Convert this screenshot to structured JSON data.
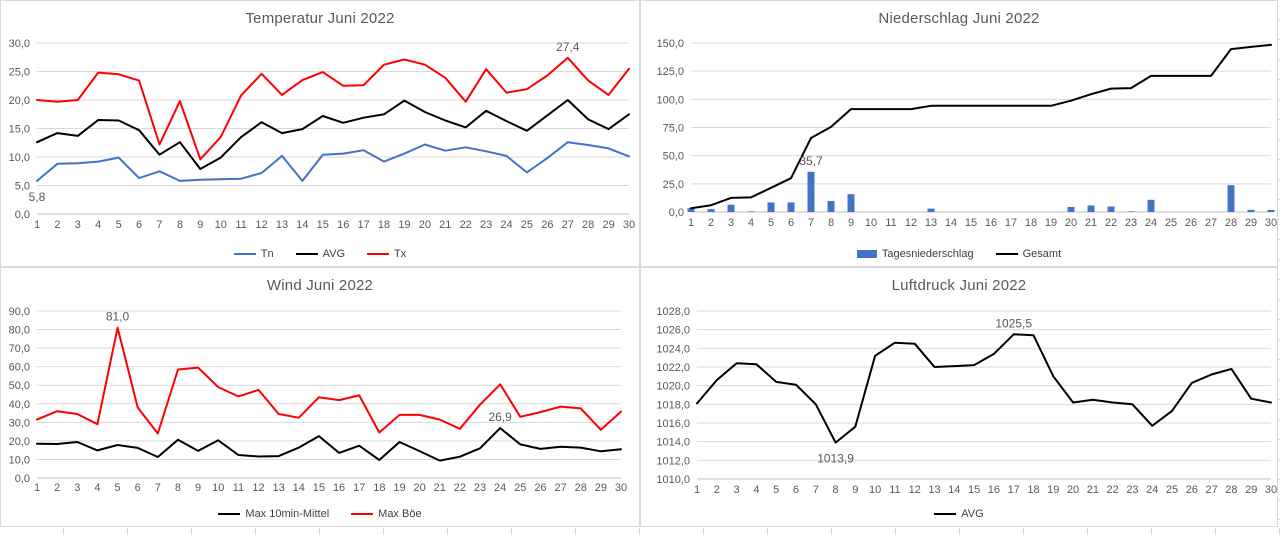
{
  "page": {
    "background_color": "#ffffff",
    "panel_border_color": "#d9d9d9",
    "grid_color": "#d9d9d9",
    "axis_line_color": "#bfbfbf",
    "tick_text_color": "#595959",
    "title_text_color": "#595959",
    "accent_blue": "#4472C4",
    "accent_red": "#FF0000",
    "accent_black": "#000000"
  },
  "chart_data": [
    {
      "id": "temperatur",
      "type": "line",
      "title": "Temperatur Juni 2022",
      "xlabel": "",
      "ylabel": "",
      "grid": true,
      "legend_position": "bottom",
      "ylim": [
        0,
        30
      ],
      "y_ticks": [
        0,
        5,
        10,
        15,
        20,
        25,
        30
      ],
      "y_tick_labels": [
        "0,0",
        "5,0",
        "10,0",
        "15,0",
        "20,0",
        "25,0",
        "30,0"
      ],
      "categories": [
        1,
        2,
        3,
        4,
        5,
        6,
        7,
        8,
        9,
        10,
        11,
        12,
        13,
        14,
        15,
        16,
        17,
        18,
        19,
        20,
        21,
        22,
        23,
        24,
        25,
        26,
        27,
        28,
        29,
        30
      ],
      "series": [
        {
          "name": "Tn",
          "type": "line",
          "color": "#4472C4",
          "values": [
            5.8,
            8.8,
            8.9,
            9.2,
            9.9,
            6.3,
            7.5,
            5.8,
            6.0,
            6.1,
            6.2,
            7.2,
            10.2,
            5.8,
            10.4,
            10.6,
            11.2,
            9.2,
            10.6,
            12.2,
            11.1,
            11.7,
            11.0,
            10.2,
            7.3,
            9.8,
            12.6,
            12.1,
            11.5,
            10.1
          ]
        },
        {
          "name": "AVG",
          "type": "line",
          "color": "#000000",
          "values": [
            12.6,
            14.2,
            13.7,
            16.5,
            16.4,
            14.7,
            10.4,
            12.6,
            7.9,
            9.9,
            13.5,
            16.1,
            14.2,
            14.9,
            17.2,
            16.0,
            16.9,
            17.5,
            19.9,
            17.9,
            16.4,
            15.2,
            18.1,
            16.3,
            14.6,
            17.3,
            20.0,
            16.6,
            14.9,
            17.5
          ]
        },
        {
          "name": "Tx",
          "type": "line",
          "color": "#FF0000",
          "values": [
            20.0,
            19.7,
            20.0,
            24.8,
            24.5,
            23.4,
            12.2,
            19.8,
            9.6,
            13.5,
            20.8,
            24.6,
            20.9,
            23.5,
            24.9,
            22.5,
            22.6,
            26.2,
            27.1,
            26.2,
            23.9,
            19.7,
            25.4,
            21.3,
            21.9,
            24.3,
            27.4,
            23.4,
            20.9,
            25.5
          ]
        }
      ],
      "annotations": [
        {
          "text": "5,8",
          "series": "Tn",
          "day": 1,
          "color": "#4472C4",
          "placement": "below"
        },
        {
          "text": "27,4",
          "series": "Tx",
          "day": 27,
          "color": "#FF0000",
          "placement": "above"
        }
      ]
    },
    {
      "id": "niederschlag",
      "type": "bar",
      "title": "Niederschlag Juni 2022",
      "xlabel": "",
      "ylabel": "",
      "grid": true,
      "legend_position": "bottom",
      "ylim": [
        0,
        150
      ],
      "y_ticks": [
        0,
        25,
        50,
        75,
        100,
        125,
        150
      ],
      "y_tick_labels": [
        "0,0",
        "25,0",
        "50,0",
        "75,0",
        "100,0",
        "125,0",
        "150,0"
      ],
      "categories": [
        1,
        2,
        3,
        4,
        5,
        6,
        7,
        8,
        9,
        10,
        11,
        12,
        13,
        14,
        15,
        16,
        17,
        18,
        19,
        20,
        21,
        22,
        23,
        24,
        25,
        26,
        27,
        28,
        29,
        30
      ],
      "series": [
        {
          "name": "Tagesniederschlag",
          "type": "bar",
          "color": "#4472C4",
          "values": [
            3.4,
            2.6,
            6.5,
            0.5,
            8.5,
            8.5,
            35.7,
            9.8,
            15.8,
            0,
            0,
            0,
            3.0,
            0,
            0,
            0,
            0,
            0,
            0,
            4.5,
            5.8,
            4.9,
            0.5,
            10.8,
            0,
            0,
            0,
            23.8,
            1.9,
            1.8
          ]
        },
        {
          "name": "Gesamt",
          "type": "line",
          "color": "#000000",
          "values": [
            3.4,
            6.0,
            12.5,
            13.0,
            21.5,
            30.0,
            65.7,
            75.5,
            91.3,
            91.3,
            91.3,
            91.3,
            94.3,
            94.3,
            94.3,
            94.3,
            94.3,
            94.3,
            94.3,
            98.8,
            104.6,
            109.5,
            110.0,
            120.8,
            120.8,
            120.8,
            120.8,
            144.6,
            146.5,
            148.3
          ]
        }
      ],
      "annotations": [
        {
          "text": "35,7",
          "series": "Tagesniederschlag",
          "day": 7,
          "color": "#2E86C1",
          "placement": "above"
        }
      ]
    },
    {
      "id": "wind",
      "type": "line",
      "title": "Wind Juni 2022",
      "xlabel": "",
      "ylabel": "",
      "grid": true,
      "legend_position": "bottom",
      "ylim": [
        0,
        90
      ],
      "y_ticks": [
        0,
        10,
        20,
        30,
        40,
        50,
        60,
        70,
        80,
        90
      ],
      "y_tick_labels": [
        "0,0",
        "10,0",
        "20,0",
        "30,0",
        "40,0",
        "50,0",
        "60,0",
        "70,0",
        "80,0",
        "90,0"
      ],
      "categories": [
        1,
        2,
        3,
        4,
        5,
        6,
        7,
        8,
        9,
        10,
        11,
        12,
        13,
        14,
        15,
        16,
        17,
        18,
        19,
        20,
        21,
        22,
        23,
        24,
        25,
        26,
        27,
        28,
        29,
        30
      ],
      "series": [
        {
          "name": "Max 10min-Mittel",
          "type": "line",
          "color": "#000000",
          "values": [
            18.5,
            18.3,
            19.4,
            14.9,
            17.8,
            16.2,
            11.3,
            20.6,
            14.6,
            20.3,
            12.4,
            11.6,
            11.8,
            16.4,
            22.6,
            13.5,
            17.4,
            9.7,
            19.4,
            14.5,
            9.4,
            11.5,
            16.0,
            26.9,
            18.1,
            15.7,
            16.8,
            16.4,
            14.4,
            15.5
          ]
        },
        {
          "name": "Max Böe",
          "type": "line",
          "color": "#FF0000",
          "values": [
            31.5,
            36.0,
            34.5,
            29.0,
            81.0,
            38.0,
            24.0,
            58.5,
            59.5,
            49.0,
            44.0,
            47.5,
            34.5,
            32.5,
            43.5,
            42.0,
            44.5,
            24.5,
            34.0,
            34.0,
            31.5,
            26.5,
            39.5,
            50.5,
            33.0,
            35.5,
            38.5,
            37.5,
            26.0,
            35.8
          ]
        }
      ],
      "annotations": [
        {
          "text": "81,0",
          "series": "Max Böe",
          "day": 5,
          "color": "#FF0000",
          "placement": "above"
        },
        {
          "text": "26,9",
          "series": "Max 10min-Mittel",
          "day": 24,
          "color": "#404040",
          "placement": "above"
        }
      ]
    },
    {
      "id": "luftdruck",
      "type": "line",
      "title": "Luftdruck Juni 2022",
      "xlabel": "",
      "ylabel": "",
      "grid": true,
      "legend_position": "bottom",
      "ylim": [
        1010,
        1028
      ],
      "y_ticks": [
        1010,
        1012,
        1014,
        1016,
        1018,
        1020,
        1022,
        1024,
        1026,
        1028
      ],
      "y_tick_labels": [
        "1010,0",
        "1012,0",
        "1014,0",
        "1016,0",
        "1018,0",
        "1020,0",
        "1022,0",
        "1024,0",
        "1026,0",
        "1028,0"
      ],
      "categories": [
        1,
        2,
        3,
        4,
        5,
        6,
        7,
        8,
        9,
        10,
        11,
        12,
        13,
        14,
        15,
        16,
        17,
        18,
        19,
        20,
        21,
        22,
        23,
        24,
        25,
        26,
        27,
        28,
        29,
        30
      ],
      "series": [
        {
          "name": "AVG",
          "type": "line",
          "color": "#000000",
          "values": [
            1018.1,
            1020.6,
            1022.4,
            1022.3,
            1020.4,
            1020.1,
            1018.0,
            1013.9,
            1015.6,
            1023.2,
            1024.6,
            1024.5,
            1022.0,
            1022.1,
            1022.2,
            1023.4,
            1025.5,
            1025.4,
            1021.0,
            1018.2,
            1018.5,
            1018.2,
            1018.0,
            1015.7,
            1017.3,
            1020.3,
            1021.2,
            1021.8,
            1018.6,
            1018.2
          ]
        }
      ],
      "annotations": [
        {
          "text": "1025,5",
          "series": "AVG",
          "day": 17,
          "color": "#404040",
          "placement": "above"
        },
        {
          "text": "1013,9",
          "series": "AVG",
          "day": 8,
          "color": "#404040",
          "placement": "below"
        }
      ]
    }
  ]
}
